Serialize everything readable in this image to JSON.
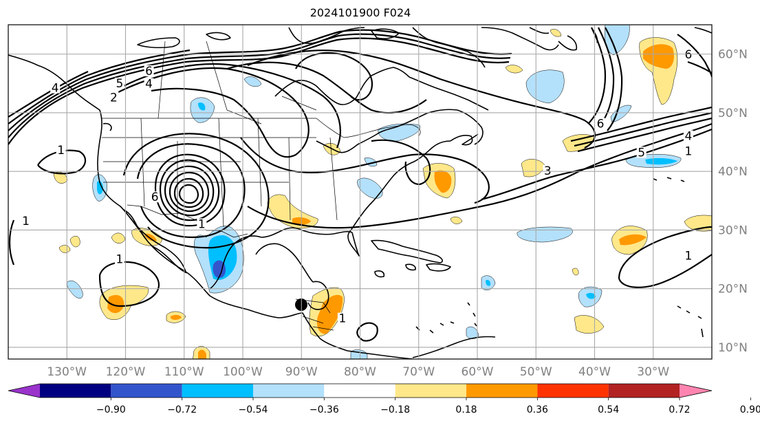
{
  "title": "2024101900 F024",
  "map": {
    "lon_range": [
      -140,
      -20
    ],
    "lat_range": [
      8,
      65
    ],
    "lon_ticks": [
      {
        "lon": -130,
        "label": "130°W"
      },
      {
        "lon": -120,
        "label": "120°W"
      },
      {
        "lon": -110,
        "label": "110°W"
      },
      {
        "lon": -100,
        "label": "100°W"
      },
      {
        "lon": -90,
        "label": "90°W"
      },
      {
        "lon": -80,
        "label": "80°W"
      },
      {
        "lon": -70,
        "label": "70°W"
      },
      {
        "lon": -60,
        "label": "60°W"
      },
      {
        "lon": -50,
        "label": "50°W"
      },
      {
        "lon": -40,
        "label": "40°W"
      },
      {
        "lon": -30,
        "label": "30°W"
      }
    ],
    "lat_ticks": [
      {
        "lat": 60,
        "label": "60°N"
      },
      {
        "lat": 50,
        "label": "50°N"
      },
      {
        "lat": 40,
        "label": "40°N"
      },
      {
        "lat": 30,
        "label": "30°N"
      },
      {
        "lat": 20,
        "label": "20°N"
      },
      {
        "lat": 10,
        "label": "10°N"
      }
    ],
    "contour_labels": [
      {
        "text": "6",
        "lon": -116,
        "lat": 56.8
      },
      {
        "text": "5",
        "lon": -121,
        "lat": 54.7
      },
      {
        "text": "4",
        "lon": -116,
        "lat": 54.6
      },
      {
        "text": "2",
        "lon": -122,
        "lat": 52.3
      },
      {
        "text": "4",
        "lon": -132,
        "lat": 53.9
      },
      {
        "text": "1",
        "lon": -131,
        "lat": 43.3
      },
      {
        "text": "1",
        "lon": -137,
        "lat": 31.2
      },
      {
        "text": "6",
        "lon": -115,
        "lat": 35.3
      },
      {
        "text": "1",
        "lon": -107,
        "lat": 30.7
      },
      {
        "text": "1",
        "lon": -121,
        "lat": 24.7
      },
      {
        "text": "3",
        "lon": -48,
        "lat": 39.8
      },
      {
        "text": "5",
        "lon": -32,
        "lat": 42.9
      },
      {
        "text": "4",
        "lon": -24,
        "lat": 45.7
      },
      {
        "text": "1",
        "lon": -24,
        "lat": 43.1
      },
      {
        "text": "6",
        "lon": -39,
        "lat": 47.8
      },
      {
        "text": "6",
        "lon": -24,
        "lat": 59.6
      },
      {
        "text": "1",
        "lon": -24,
        "lat": 25.3
      },
      {
        "text": "1",
        "lon": -83,
        "lat": 14.6
      }
    ]
  },
  "colorbar": {
    "colors": [
      "#9933cc",
      "#000080",
      "#3355cc",
      "#00bfff",
      "#b3e0fb",
      "#ffffff",
      "#ffe88a",
      "#ff9900",
      "#ff3300",
      "#b22222",
      "#ff85b0"
    ],
    "tick_labels": [
      "−0.90",
      "−0.72",
      "−0.54",
      "−0.36",
      "−0.18",
      "0.18",
      "0.36",
      "0.54",
      "0.72",
      "0.90"
    ]
  },
  "fill_colors": {
    "light_blue": "#b3e0fb",
    "blue": "#00bfff",
    "medium_blue": "#3355cc",
    "light_yellow": "#ffe88a",
    "orange": "#ff9900"
  }
}
